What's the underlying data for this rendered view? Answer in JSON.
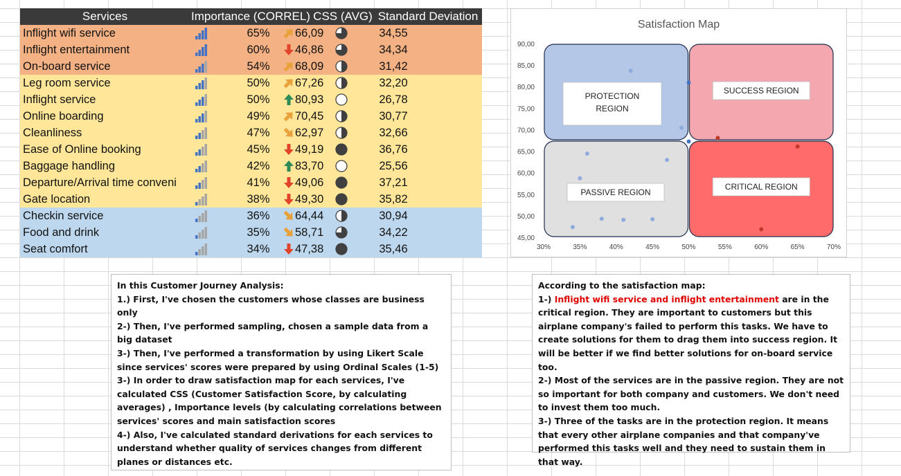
{
  "table": {
    "headers": {
      "services": "Services",
      "importance": "Importance (CORREL)",
      "css": "CSS (AVG)",
      "sd": "Standard Deviation"
    },
    "colors": {
      "orange": "#f4b183",
      "yellow": "#ffe699",
      "blue": "#bdd7ee",
      "header": "#3a3a3a"
    },
    "rows": [
      {
        "name": "Inflight wifi service",
        "importance": "65%",
        "imp_level": 0.65,
        "css": "66,09",
        "trend": "up-right",
        "sd": "34,55",
        "pie": "3/4",
        "band": "orange"
      },
      {
        "name": "Inflight entertainment",
        "importance": "60%",
        "imp_level": 0.6,
        "css": "46,86",
        "trend": "down",
        "sd": "34,34",
        "pie": "3/4",
        "band": "orange"
      },
      {
        "name": "On-board service",
        "importance": "54%",
        "imp_level": 0.54,
        "css": "68,09",
        "trend": "up-right",
        "sd": "31,42",
        "pie": "1/2",
        "band": "orange"
      },
      {
        "name": "Leg room service",
        "importance": "50%",
        "imp_level": 0.5,
        "css": "67,26",
        "trend": "up-right",
        "sd": "32,20",
        "pie": "1/2",
        "band": "yellow"
      },
      {
        "name": "Inflight service",
        "importance": "50%",
        "imp_level": 0.5,
        "css": "80,93",
        "trend": "up",
        "sd": "26,78",
        "pie": "0",
        "band": "yellow"
      },
      {
        "name": "Online boarding",
        "importance": "49%",
        "imp_level": 0.49,
        "css": "70,45",
        "trend": "up-right",
        "sd": "30,77",
        "pie": "1/2",
        "band": "yellow"
      },
      {
        "name": "Cleanliness",
        "importance": "47%",
        "imp_level": 0.47,
        "css": "62,97",
        "trend": "down-right",
        "sd": "32,66",
        "pie": "1/2",
        "band": "yellow"
      },
      {
        "name": "Ease of Online booking",
        "importance": "45%",
        "imp_level": 0.45,
        "css": "49,19",
        "trend": "down",
        "sd": "36,76",
        "pie": "1",
        "band": "yellow"
      },
      {
        "name": "Baggage handling",
        "importance": "42%",
        "imp_level": 0.42,
        "css": "83,70",
        "trend": "up",
        "sd": "25,56",
        "pie": "0",
        "band": "yellow"
      },
      {
        "name": "Departure/Arrival time conveni",
        "importance": "41%",
        "imp_level": 0.41,
        "css": "49,06",
        "trend": "down",
        "sd": "37,21",
        "pie": "1",
        "band": "yellow"
      },
      {
        "name": "Gate location",
        "importance": "38%",
        "imp_level": 0.38,
        "css": "49,30",
        "trend": "down",
        "sd": "35,82",
        "pie": "1",
        "band": "yellow"
      },
      {
        "name": "Checkin service",
        "importance": "36%",
        "imp_level": 0.36,
        "css": "64,44",
        "trend": "down-right",
        "sd": "30,94",
        "pie": "1/2",
        "band": "blue"
      },
      {
        "name": "Food and drink",
        "importance": "35%",
        "imp_level": 0.35,
        "css": "58,71",
        "trend": "down-right",
        "sd": "34,22",
        "pie": "3/4",
        "band": "blue"
      },
      {
        "name": "Seat comfort",
        "importance": "34%",
        "imp_level": 0.34,
        "css": "47,38",
        "trend": "down",
        "sd": "35,46",
        "pie": "1",
        "band": "blue"
      }
    ]
  },
  "chart_data": {
    "type": "scatter",
    "title": "Satisfaction Map",
    "x_ticks": [
      "30%",
      "35%",
      "40%",
      "45%",
      "50%",
      "55%",
      "60%",
      "65%",
      "70%"
    ],
    "y_ticks": [
      "90,00",
      "85,00",
      "80,00",
      "75,00",
      "70,00",
      "65,00",
      "60,00",
      "55,00",
      "50,00",
      "45,00"
    ],
    "xlim": [
      0.3,
      0.7
    ],
    "ylim": [
      45,
      90
    ],
    "grid": false,
    "regions": [
      {
        "label": "PROTECTION REGION",
        "color": "#b4c7e7",
        "x": [
          0.3,
          0.5
        ],
        "y": [
          67.5,
          90
        ]
      },
      {
        "label": "SUCCESS REGION",
        "color": "#f4a7ae",
        "x": [
          0.5,
          0.7
        ],
        "y": [
          67.5,
          90
        ]
      },
      {
        "label": "PASSIVE REGION",
        "color": "#e0e0e0",
        "x": [
          0.3,
          0.5
        ],
        "y": [
          45,
          67.5
        ]
      },
      {
        "label": "CRITICAL REGION",
        "color": "#ff6b6b",
        "x": [
          0.5,
          0.7
        ],
        "y": [
          45,
          67.5
        ]
      }
    ],
    "points": [
      {
        "x": 0.65,
        "y": 66.09,
        "color": "#c0392b"
      },
      {
        "x": 0.6,
        "y": 46.86,
        "color": "#c0392b"
      },
      {
        "x": 0.54,
        "y": 68.09,
        "color": "#c0392b"
      },
      {
        "x": 0.5,
        "y": 67.26,
        "color": "#4472c4"
      },
      {
        "x": 0.5,
        "y": 80.93,
        "color": "#4472c4"
      },
      {
        "x": 0.49,
        "y": 70.45,
        "color": "#8faadc"
      },
      {
        "x": 0.47,
        "y": 62.97,
        "color": "#8faadc"
      },
      {
        "x": 0.45,
        "y": 49.19,
        "color": "#8faadc"
      },
      {
        "x": 0.42,
        "y": 83.7,
        "color": "#8faadc"
      },
      {
        "x": 0.41,
        "y": 49.06,
        "color": "#8faadc"
      },
      {
        "x": 0.38,
        "y": 49.3,
        "color": "#8faadc"
      },
      {
        "x": 0.36,
        "y": 64.44,
        "color": "#8faadc"
      },
      {
        "x": 0.35,
        "y": 58.71,
        "color": "#8faadc"
      },
      {
        "x": 0.34,
        "y": 47.38,
        "color": "#8faadc"
      }
    ]
  },
  "note_left": {
    "title": "In this Customer Journey Analysis:",
    "lines": [
      "1.) First, I've chosen the customers whose classes are business only",
      "2-) Then, I've performed sampling, chosen a sample data from a big dataset",
      "3-) Then, I've performed a transformation by using Likert Scale since services' scores were prepared by using Ordinal Scales (1-5)",
      "3-) In order to draw satisfaction map for each services, I've calculated CSS (Customer Satisfaction Score, by calculating averages) , Importance levels (by calculating correlations between services' scores and main satisfaction scores",
      "4-) Also, I've calculated standard derivations for each services to understand whether quality of services changes from different planes or distances etc."
    ]
  },
  "note_right": {
    "title": "According to  the satisfaction map:",
    "p1_prefix": "1-) ",
    "p1_highlight": "Inflight wifi service and inflight entertainment",
    "p1_rest": " are in the critical region. They are important to customers but this airplane company's failed to perform this tasks. We have to create solutions for them to drag them into success region. It will be better if we find better solutions for on-board service too.",
    "p2": "2-) Most of the services are in the passive region. They are not so important for both company and customers. We don't need to invest them too much.",
    "p3": "3-) Three of the tasks are in the protection region. It means that every other airplane companies and that company've performed this tasks well and they need to sustain them in that way."
  }
}
